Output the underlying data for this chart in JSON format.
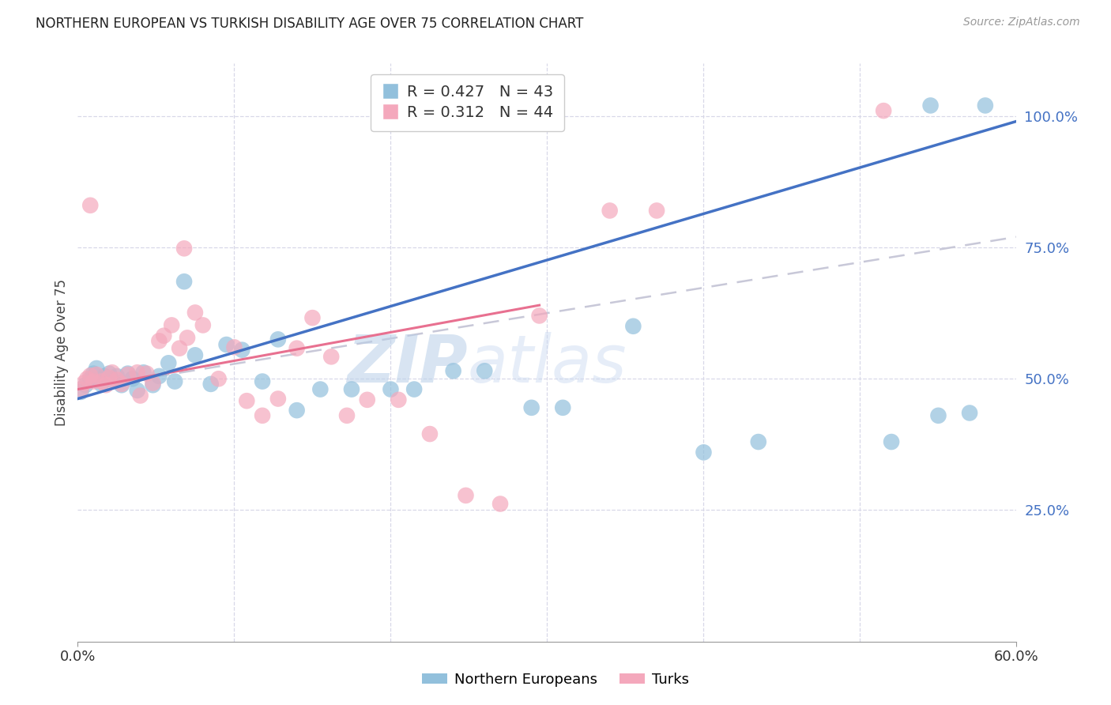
{
  "title": "NORTHERN EUROPEAN VS TURKISH DISABILITY AGE OVER 75 CORRELATION CHART",
  "source": "Source: ZipAtlas.com",
  "ylabel": "Disability Age Over 75",
  "xlim": [
    0.0,
    0.6
  ],
  "ylim": [
    0.0,
    1.1
  ],
  "ytick_positions": [
    0.25,
    0.5,
    0.75,
    1.0
  ],
  "yticklabels": [
    "25.0%",
    "50.0%",
    "75.0%",
    "100.0%"
  ],
  "blue_color": "#92C0DC",
  "pink_color": "#F4A8BC",
  "blue_line_color": "#4472C4",
  "pink_line_color": "#E87090",
  "gray_dash_color": "#C8C8D8",
  "blue_r": 0.427,
  "blue_n": 43,
  "pink_r": 0.312,
  "pink_n": 44,
  "blue_x": [
    0.002,
    0.005,
    0.008,
    0.01,
    0.012,
    0.015,
    0.017,
    0.02,
    0.022,
    0.025,
    0.028,
    0.032,
    0.035,
    0.038,
    0.042,
    0.048,
    0.052,
    0.058,
    0.062,
    0.068,
    0.075,
    0.085,
    0.095,
    0.105,
    0.118,
    0.128,
    0.14,
    0.155,
    0.175,
    0.2,
    0.215,
    0.24,
    0.26,
    0.29,
    0.31,
    0.355,
    0.4,
    0.435,
    0.52,
    0.55,
    0.57,
    0.58,
    0.545
  ],
  "blue_y": [
    0.475,
    0.488,
    0.5,
    0.51,
    0.52,
    0.49,
    0.505,
    0.51,
    0.498,
    0.505,
    0.488,
    0.51,
    0.5,
    0.478,
    0.512,
    0.488,
    0.505,
    0.53,
    0.495,
    0.685,
    0.545,
    0.49,
    0.565,
    0.555,
    0.495,
    0.575,
    0.44,
    0.48,
    0.48,
    0.48,
    0.48,
    0.515,
    0.515,
    0.445,
    0.445,
    0.6,
    0.36,
    0.38,
    0.38,
    0.43,
    0.435,
    1.02,
    1.02
  ],
  "pink_x": [
    0.002,
    0.004,
    0.006,
    0.008,
    0.01,
    0.012,
    0.015,
    0.018,
    0.02,
    0.022,
    0.025,
    0.028,
    0.032,
    0.038,
    0.04,
    0.044,
    0.048,
    0.052,
    0.055,
    0.06,
    0.065,
    0.07,
    0.075,
    0.08,
    0.09,
    0.1,
    0.108,
    0.118,
    0.128,
    0.14,
    0.15,
    0.162,
    0.172,
    0.185,
    0.205,
    0.225,
    0.248,
    0.27,
    0.295,
    0.34,
    0.37,
    0.515,
    0.008,
    0.068
  ],
  "pink_y": [
    0.48,
    0.492,
    0.5,
    0.506,
    0.495,
    0.508,
    0.495,
    0.488,
    0.502,
    0.512,
    0.498,
    0.49,
    0.508,
    0.512,
    0.468,
    0.51,
    0.492,
    0.572,
    0.582,
    0.602,
    0.558,
    0.578,
    0.626,
    0.602,
    0.5,
    0.56,
    0.458,
    0.43,
    0.462,
    0.558,
    0.616,
    0.542,
    0.43,
    0.46,
    0.46,
    0.395,
    0.278,
    0.262,
    0.62,
    0.82,
    0.82,
    1.01,
    0.83,
    0.748
  ],
  "blue_line": [
    [
      0.0,
      0.462
    ],
    [
      0.6,
      0.99
    ]
  ],
  "pink_line_solid": [
    [
      0.0,
      0.48
    ],
    [
      0.295,
      0.64
    ]
  ],
  "pink_line_dash": [
    [
      0.0,
      0.48
    ],
    [
      0.6,
      0.77
    ]
  ],
  "watermark_zip": "ZIP",
  "watermark_atlas": "atlas",
  "background_color": "#ffffff",
  "grid_color": "#d8d8e8",
  "label_color": "#4472C4"
}
